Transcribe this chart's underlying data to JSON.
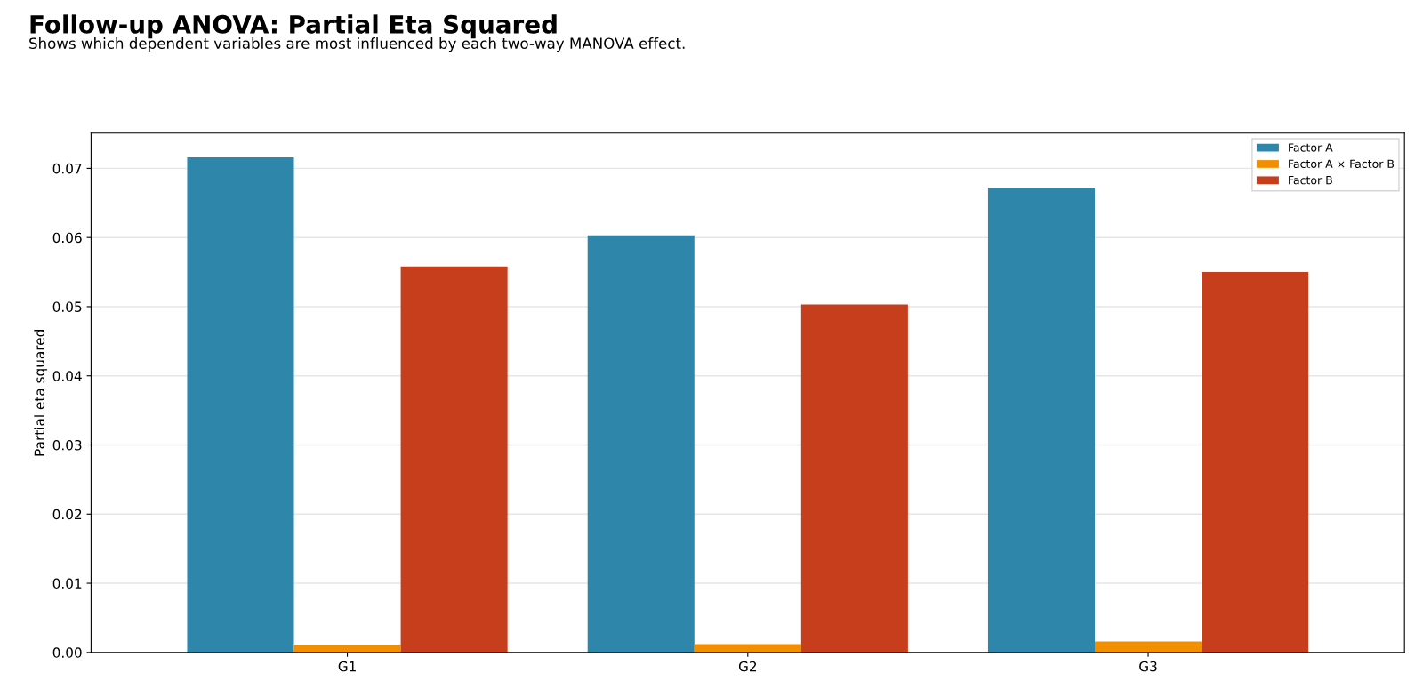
{
  "chart_data": {
    "type": "bar",
    "title": "Follow-up ANOVA: Partial Eta Squared",
    "subtitle": "Shows which dependent variables are most influenced by each two-way MANOVA effect.",
    "ylabel": "Partial eta squared",
    "categories": [
      "G1",
      "G2",
      "G3"
    ],
    "series": [
      {
        "name": "Factor A",
        "color": "#2e86ab",
        "values": [
          0.0716,
          0.0603,
          0.0672
        ]
      },
      {
        "name": "Factor A × Factor B",
        "color": "#f18f01",
        "values": [
          0.0011,
          0.0012,
          0.0016
        ]
      },
      {
        "name": "Factor B",
        "color": "#c73e1d",
        "values": [
          0.0558,
          0.0503,
          0.055
        ]
      }
    ],
    "ylim": [
      0,
      0.0751
    ],
    "yticks": [
      {
        "value": 0,
        "label": "0.00"
      },
      {
        "value": 0.01,
        "label": "0.01"
      },
      {
        "value": 0.02,
        "label": "0.02"
      },
      {
        "value": 0.03,
        "label": "0.03"
      },
      {
        "value": 0.04,
        "label": "0.04"
      },
      {
        "value": 0.05,
        "label": "0.05"
      },
      {
        "value": 0.06,
        "label": "0.06"
      },
      {
        "value": 0.07,
        "label": "0.07"
      }
    ],
    "grid": "y",
    "legend": "top right"
  }
}
